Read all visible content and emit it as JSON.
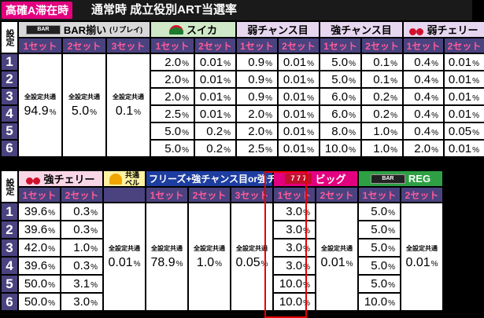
{
  "header": {
    "badge": "高確A滞在時",
    "title": "通常時 成立役別ART当選率"
  },
  "common_label": "全設定共通",
  "pct": "%",
  "settings_label": "設定",
  "rows": [
    "1",
    "2",
    "3",
    "4",
    "5",
    "6"
  ],
  "top": {
    "groups": [
      {
        "id": "bar",
        "label": "BAR揃い",
        "sub": "(リプレイ)",
        "icon": "bar-icon",
        "icon_text": "BAR"
      },
      {
        "id": "suika",
        "label": "スイカ",
        "icon": "watermelon-icon"
      },
      {
        "id": "weakch",
        "label": "弱チャンス目"
      },
      {
        "id": "strch",
        "label": "強チャンス目"
      },
      {
        "id": "weakcherry",
        "label": "弱チェリー",
        "icon": "cherry-icon"
      }
    ],
    "set_labels": [
      "1セット",
      "2セット",
      "3セット",
      "1セット",
      "2セット",
      "1セット",
      "2セット",
      "1セット",
      "2セット",
      "1セット",
      "2セット"
    ],
    "bar_common": [
      "94.9",
      "5.0",
      "0.1"
    ],
    "rows": [
      [
        "2.0",
        "0.01",
        "0.9",
        "0.01",
        "5.0",
        "0.1",
        "0.4",
        "0.01"
      ],
      [
        "2.0",
        "0.01",
        "0.9",
        "0.01",
        "5.0",
        "0.1",
        "0.4",
        "0.01"
      ],
      [
        "2.0",
        "0.01",
        "0.9",
        "0.01",
        "6.0",
        "0.2",
        "0.4",
        "0.01"
      ],
      [
        "2.5",
        "0.01",
        "2.0",
        "0.01",
        "6.0",
        "0.2",
        "0.4",
        "0.01"
      ],
      [
        "5.0",
        "0.2",
        "2.0",
        "0.01",
        "8.0",
        "1.0",
        "0.4",
        "0.05"
      ],
      [
        "5.0",
        "0.2",
        "2.5",
        "0.01",
        "10.0",
        "1.0",
        "2.0",
        "0.01"
      ]
    ]
  },
  "bottom": {
    "groups": [
      {
        "id": "strcherry",
        "label": "強チェリー",
        "icon": "cherry-icon"
      },
      {
        "id": "bell",
        "label_top": "共通",
        "label_bottom": "ベル",
        "icon": "bell-icon"
      },
      {
        "id": "freeze",
        "label": "フリーズ+強チャンス目or強チェ"
      },
      {
        "id": "big",
        "label": "ビッグ",
        "icon": "seven-icon",
        "icon_text": "7 7 7"
      },
      {
        "id": "reg",
        "label": "REG",
        "icon": "bar-icon",
        "icon_text": "BAR"
      }
    ],
    "set_labels": [
      "1セット",
      "2セット",
      "1セット",
      "2セット",
      "3セット",
      "1セット",
      "2セット",
      "1セット",
      "2セット"
    ],
    "rows": [
      [
        "39.6",
        "0.3",
        "3.0",
        "5.0"
      ],
      [
        "39.6",
        "0.3",
        "3.0",
        "5.0"
      ],
      [
        "42.0",
        "1.0",
        "3.0",
        "5.0"
      ],
      [
        "39.6",
        "0.3",
        "3.0",
        "5.0"
      ],
      [
        "50.0",
        "3.1",
        "10.0",
        "5.0"
      ],
      [
        "50.0",
        "3.0",
        "10.0",
        "10.0"
      ]
    ],
    "bell_common": "0.01",
    "freeze_common": [
      "78.9",
      "1.0",
      "0.05"
    ],
    "big_common": "0.01",
    "reg_common": "0.01"
  },
  "colors": {
    "header_bg": "#4a4380",
    "set_text": "#ff5a9a",
    "badge": "#e3007f",
    "highlight": "#e60000"
  }
}
